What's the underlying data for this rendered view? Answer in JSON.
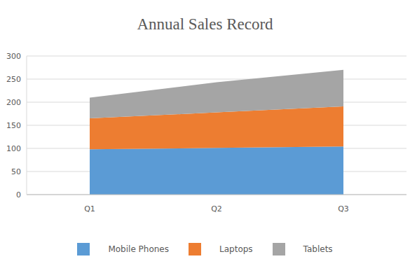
{
  "chart_data": {
    "type": "area",
    "title": "Annual Sales Record",
    "categories": [
      "Q1",
      "Q2",
      "Q3"
    ],
    "series": [
      {
        "name": "Mobile Phones",
        "color": "#5b9bd5",
        "values": [
          98,
          101,
          104
        ]
      },
      {
        "name": "Laptops",
        "color": "#ed7d31",
        "values": [
          67,
          77,
          87
        ]
      },
      {
        "name": "Tablets",
        "color": "#a5a5a5",
        "values": [
          45,
          65,
          79
        ]
      }
    ],
    "stacked": true,
    "ylim": [
      0,
      300
    ],
    "yticks": [
      0,
      50,
      100,
      150,
      200,
      250,
      300
    ],
    "grid": true
  }
}
